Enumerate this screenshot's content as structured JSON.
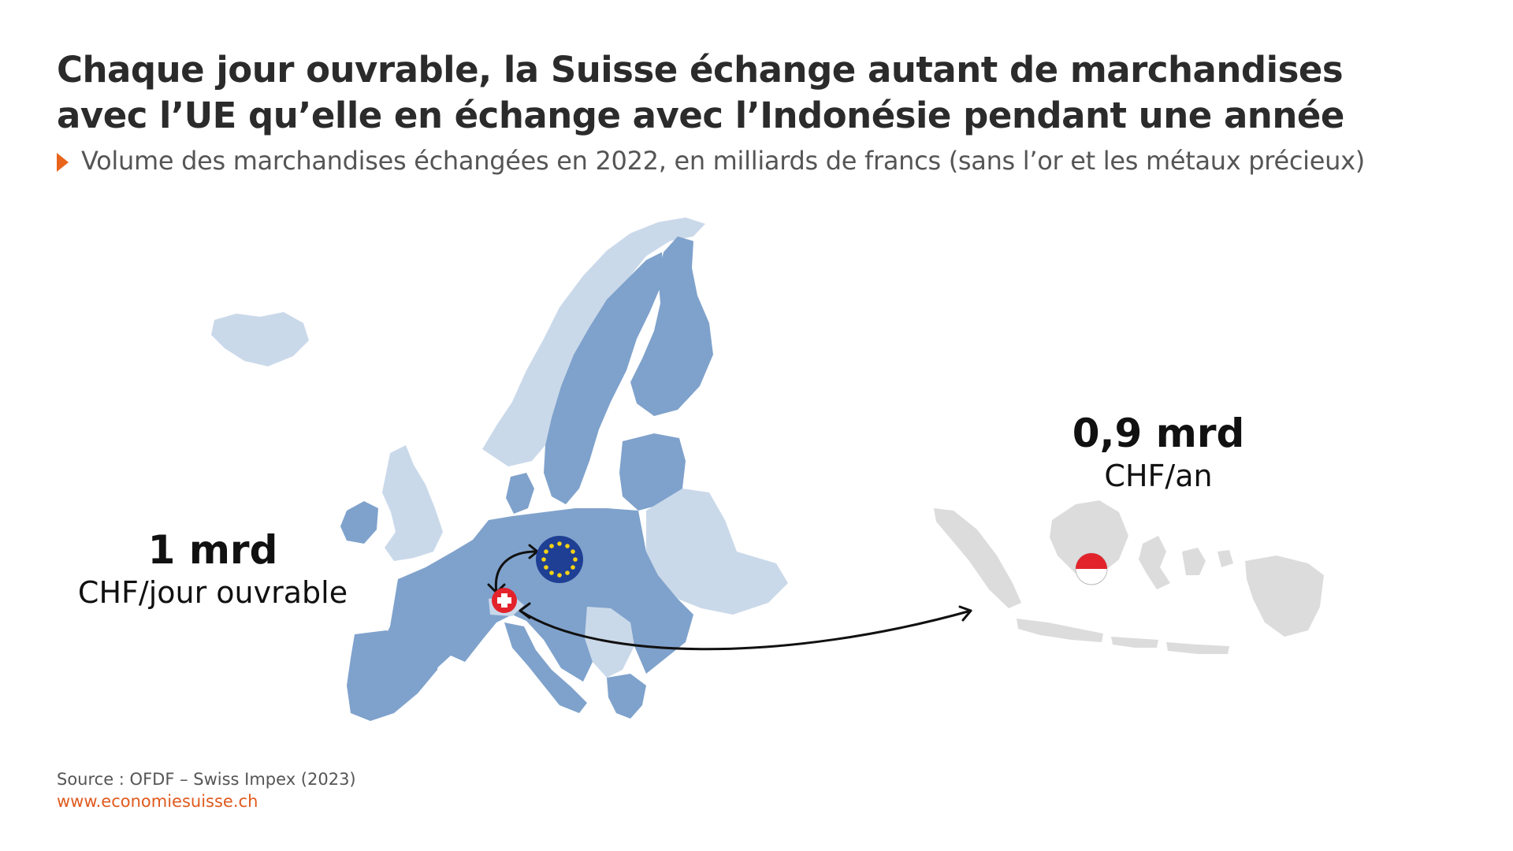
{
  "title": "Chaque jour ouvrable, la Suisse échange autant de marchandises avec l’UE qu’elle en échange avec l’Indonésie pendant une année",
  "subtitle": "Volume des marchandises échangées en 2022, en milliards de francs (sans l’or et les métaux précieux)",
  "eu_trade": {
    "value": "1 mrd",
    "unit": "CHF/jour ouvrable"
  },
  "indonesia_trade": {
    "value": "0,9 mrd",
    "unit": "CHF/an"
  },
  "source": "Source : OFDF – Swiss Impex (2023)",
  "url": "www.economiesuisse.ch",
  "colors": {
    "eu_countries": "#7fa2cc",
    "non_eu_countries": "#cad9ea",
    "indonesia": "#dcdcdc",
    "accent": "#e8641c",
    "eu_flag": "#1f3f94",
    "swiss_red": "#e3232b"
  },
  "icons": [
    "eu-flag-icon",
    "swiss-flag-icon",
    "indonesia-flag-icon"
  ]
}
